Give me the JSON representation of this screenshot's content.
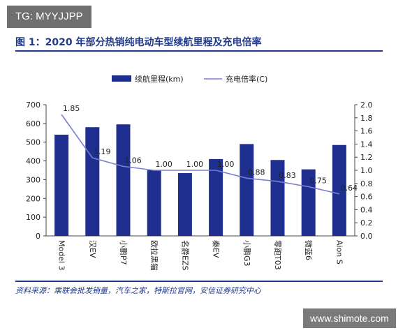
{
  "watermark_top": "TG: MYYJJPP",
  "figure_title": "图 1：2020 年部分热销纯电动车型续航里程及充电倍率",
  "source": "资料来源：乘联会批发销量，汽车之家，特斯拉官网，安信证券研究中心",
  "watermark_bottom": "www.shimote.com",
  "colors": {
    "bar": "#1f2f8f",
    "line": "#7b7fd0",
    "accent": "#1f3a8a"
  },
  "chart_data": {
    "type": "bar",
    "categories": [
      "Model 3",
      "汉EV",
      "小鹏P7",
      "欧拉黑猫",
      "名爵EZS",
      "秦EV",
      "小鹏G3",
      "零跑T03",
      "微蓝6",
      "Aion S"
    ],
    "series": [
      {
        "name": "续航里程(km)",
        "type": "bar",
        "axis": "left",
        "values": [
          540,
          580,
          595,
          350,
          335,
          410,
          490,
          405,
          355,
          485
        ]
      },
      {
        "name": "充电倍率(C)",
        "type": "line",
        "axis": "right",
        "values": [
          1.85,
          1.19,
          1.06,
          1.0,
          1.0,
          1.0,
          0.88,
          0.83,
          0.75,
          0.64
        ]
      }
    ],
    "data_labels": [
      "1.85",
      "1.19",
      "1.06",
      "1.00",
      "1.00",
      "1.00",
      "0.88",
      "0.83",
      "0.75",
      "0.64"
    ],
    "left_axis": {
      "min": 0,
      "max": 700,
      "ticks": [
        "0",
        "100",
        "200",
        "300",
        "400",
        "500",
        "600",
        "700"
      ]
    },
    "right_axis": {
      "min": 0,
      "max": 2.0,
      "ticks": [
        "0.0",
        "0.2",
        "0.4",
        "0.6",
        "0.8",
        "1.0",
        "1.2",
        "1.4",
        "1.6",
        "1.8",
        "2.0"
      ]
    },
    "legend": [
      "续航里程(km)",
      "充电倍率(C)"
    ],
    "legend_position": "top-center",
    "grid": false
  }
}
